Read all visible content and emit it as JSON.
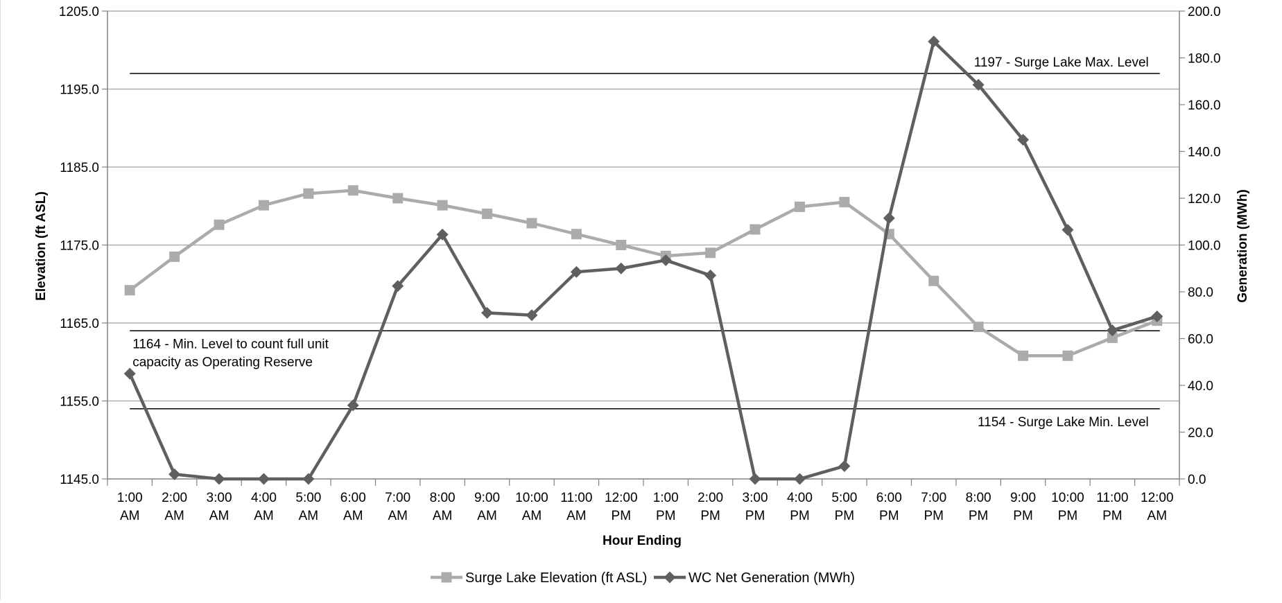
{
  "chart_data": {
    "type": "line",
    "title": "",
    "x": [
      "1:00 AM",
      "2:00 AM",
      "3:00 AM",
      "4:00 AM",
      "5:00 AM",
      "6:00 AM",
      "7:00 AM",
      "8:00 AM",
      "9:00 AM",
      "10:00 AM",
      "11:00 AM",
      "12:00 PM",
      "1:00 PM",
      "2:00 PM",
      "3:00 PM",
      "4:00 PM",
      "5:00 PM",
      "6:00 PM",
      "7:00 PM",
      "8:00 PM",
      "9:00 PM",
      "10:00 PM",
      "11:00 PM",
      "12:00 AM"
    ],
    "xlabel": "Hour Ending",
    "ylabel_left": "Elevation (ft ASL)",
    "ylabel_right": "Generation (MWh)",
    "ylim_left": [
      1145,
      1205
    ],
    "ylim_right": [
      0,
      200
    ],
    "yticks_left": [
      "1145.0",
      "1155.0",
      "1165.0",
      "1175.0",
      "1185.0",
      "1195.0",
      "1205.0"
    ],
    "yticks_right": [
      "0.0",
      "20.0",
      "40.0",
      "60.0",
      "80.0",
      "100.0",
      "120.0",
      "140.0",
      "160.0",
      "180.0",
      "200.0"
    ],
    "grid": true,
    "legend_position": "bottom",
    "series": [
      {
        "name": "Surge Lake Elevation (ft ASL)",
        "axis": "left",
        "color": "#ababab",
        "marker": "square",
        "values": [
          1169.2,
          1173.5,
          1177.6,
          1180.1,
          1181.6,
          1182.0,
          1181.0,
          1180.1,
          1179.0,
          1177.8,
          1176.4,
          1175.0,
          1173.6,
          1174.0,
          1177.0,
          1179.9,
          1180.5,
          1176.4,
          1170.4,
          1164.5,
          1160.8,
          1160.8,
          1163.1,
          1165.3
        ]
      },
      {
        "name": "WC Net Generation (MWh)",
        "axis": "right",
        "color": "#5f5f5f",
        "marker": "diamond",
        "values": [
          45,
          2,
          0,
          0,
          0,
          31.5,
          82.5,
          104.5,
          71,
          70,
          88.5,
          90,
          93.5,
          87,
          0,
          0,
          5.5,
          111.5,
          187,
          168.5,
          145,
          106.5,
          63.5,
          69.5
        ]
      }
    ],
    "reference_lines": [
      {
        "value": 1197,
        "label": "1197 - Surge Lake Max. Level",
        "label_lines": [
          "1197 - Surge Lake Max. Level"
        ],
        "label_align": "right",
        "label_side": "above"
      },
      {
        "value": 1164,
        "label": "1164 - Min. Level to count full unit capacity as Operating Reserve",
        "label_lines": [
          "1164 - Min. Level to count full unit",
          "capacity as Operating Reserve"
        ],
        "label_align": "left",
        "label_side": "below"
      },
      {
        "value": 1154,
        "label": "1154 - Surge Lake Min. Level",
        "label_lines": [
          "1154 - Surge Lake Min. Level"
        ],
        "label_align": "right",
        "label_side": "below"
      }
    ]
  }
}
